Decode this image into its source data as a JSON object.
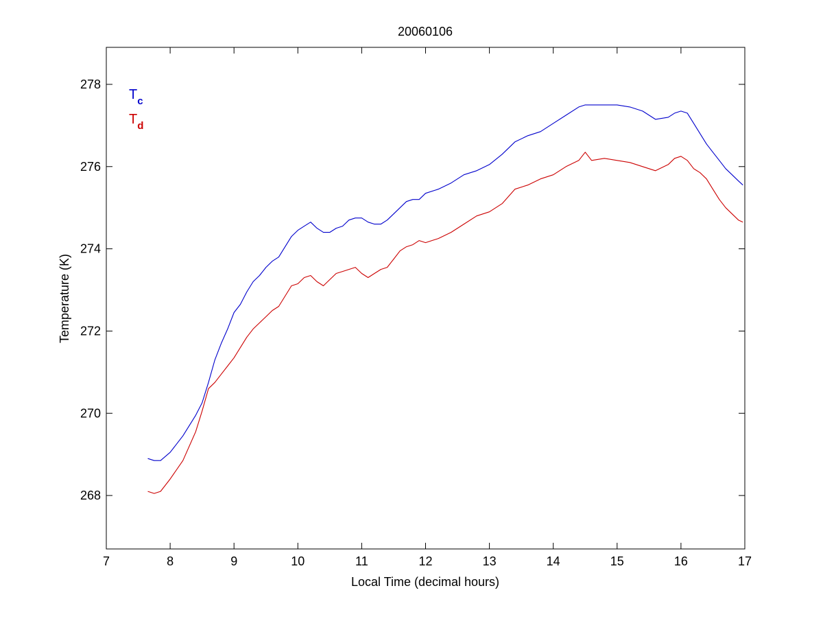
{
  "chart_data": {
    "type": "line",
    "title": "20060106",
    "xlabel": "Local Time (decimal hours)",
    "ylabel": "Temperature (K)",
    "xlim": [
      7,
      17
    ],
    "ylim": [
      266.7,
      278.9
    ],
    "xticks": [
      7,
      8,
      9,
      10,
      11,
      12,
      13,
      14,
      15,
      16,
      17
    ],
    "yticks": [
      268,
      270,
      272,
      274,
      276,
      278
    ],
    "grid": false,
    "legend_position": "top-left",
    "legend": [
      {
        "main": "T",
        "sub": "c",
        "color": "#0000cc"
      },
      {
        "main": "T",
        "sub": "d",
        "color": "#cc0000"
      }
    ],
    "series": [
      {
        "name": "Tc",
        "color": "#0000cc",
        "x": [
          7.65,
          7.75,
          7.85,
          8.0,
          8.2,
          8.4,
          8.5,
          8.6,
          8.7,
          8.8,
          8.9,
          9.0,
          9.1,
          9.2,
          9.3,
          9.4,
          9.5,
          9.6,
          9.7,
          9.8,
          9.9,
          10.0,
          10.1,
          10.2,
          10.3,
          10.4,
          10.5,
          10.6,
          10.7,
          10.8,
          10.9,
          11.0,
          11.1,
          11.2,
          11.3,
          11.4,
          11.5,
          11.6,
          11.7,
          11.8,
          11.9,
          12.0,
          12.2,
          12.4,
          12.6,
          12.8,
          13.0,
          13.2,
          13.4,
          13.6,
          13.8,
          14.0,
          14.2,
          14.4,
          14.5,
          14.6,
          14.8,
          15.0,
          15.2,
          15.4,
          15.6,
          15.8,
          15.9,
          16.0,
          16.1,
          16.2,
          16.3,
          16.4,
          16.5,
          16.6,
          16.7,
          16.8,
          16.9,
          16.97
        ],
        "y": [
          268.9,
          268.85,
          268.85,
          269.05,
          269.45,
          269.95,
          270.25,
          270.75,
          271.3,
          271.7,
          272.05,
          272.45,
          272.65,
          272.95,
          273.2,
          273.35,
          273.55,
          273.7,
          273.8,
          274.05,
          274.3,
          274.45,
          274.55,
          274.65,
          274.5,
          274.4,
          274.4,
          274.5,
          274.55,
          274.7,
          274.75,
          274.75,
          274.65,
          274.6,
          274.6,
          274.7,
          274.85,
          275.0,
          275.15,
          275.2,
          275.2,
          275.35,
          275.45,
          275.6,
          275.8,
          275.9,
          276.05,
          276.3,
          276.6,
          276.75,
          276.85,
          277.05,
          277.25,
          277.45,
          277.5,
          277.5,
          277.5,
          277.5,
          277.45,
          277.35,
          277.15,
          277.2,
          277.3,
          277.35,
          277.3,
          277.05,
          276.8,
          276.55,
          276.35,
          276.15,
          275.95,
          275.8,
          275.65,
          275.55
        ]
      },
      {
        "name": "Td",
        "color": "#cc0000",
        "x": [
          7.65,
          7.75,
          7.85,
          8.0,
          8.2,
          8.4,
          8.5,
          8.6,
          8.7,
          8.8,
          8.9,
          9.0,
          9.1,
          9.2,
          9.3,
          9.4,
          9.5,
          9.6,
          9.7,
          9.8,
          9.9,
          10.0,
          10.1,
          10.2,
          10.3,
          10.4,
          10.5,
          10.6,
          10.7,
          10.8,
          10.9,
          11.0,
          11.1,
          11.2,
          11.3,
          11.4,
          11.5,
          11.6,
          11.7,
          11.8,
          11.9,
          12.0,
          12.2,
          12.4,
          12.6,
          12.8,
          13.0,
          13.2,
          13.4,
          13.6,
          13.8,
          14.0,
          14.2,
          14.4,
          14.5,
          14.6,
          14.8,
          15.0,
          15.2,
          15.4,
          15.6,
          15.8,
          15.9,
          16.0,
          16.1,
          16.2,
          16.3,
          16.4,
          16.5,
          16.6,
          16.7,
          16.8,
          16.9,
          16.97
        ],
        "y": [
          268.1,
          268.05,
          268.1,
          268.4,
          268.85,
          269.55,
          270.05,
          270.6,
          270.75,
          270.95,
          271.15,
          271.35,
          271.6,
          271.85,
          272.05,
          272.2,
          272.35,
          272.5,
          272.6,
          272.85,
          273.1,
          273.15,
          273.3,
          273.35,
          273.2,
          273.1,
          273.25,
          273.4,
          273.45,
          273.5,
          273.55,
          273.4,
          273.3,
          273.4,
          273.5,
          273.55,
          273.75,
          273.95,
          274.05,
          274.1,
          274.2,
          274.15,
          274.25,
          274.4,
          274.6,
          274.8,
          274.9,
          275.1,
          275.45,
          275.55,
          275.7,
          275.8,
          276.0,
          276.15,
          276.35,
          276.15,
          276.2,
          276.15,
          276.1,
          276.0,
          275.9,
          276.05,
          276.2,
          276.25,
          276.15,
          275.95,
          275.85,
          275.7,
          275.45,
          275.2,
          275.0,
          274.85,
          274.7,
          274.65
        ]
      }
    ]
  }
}
